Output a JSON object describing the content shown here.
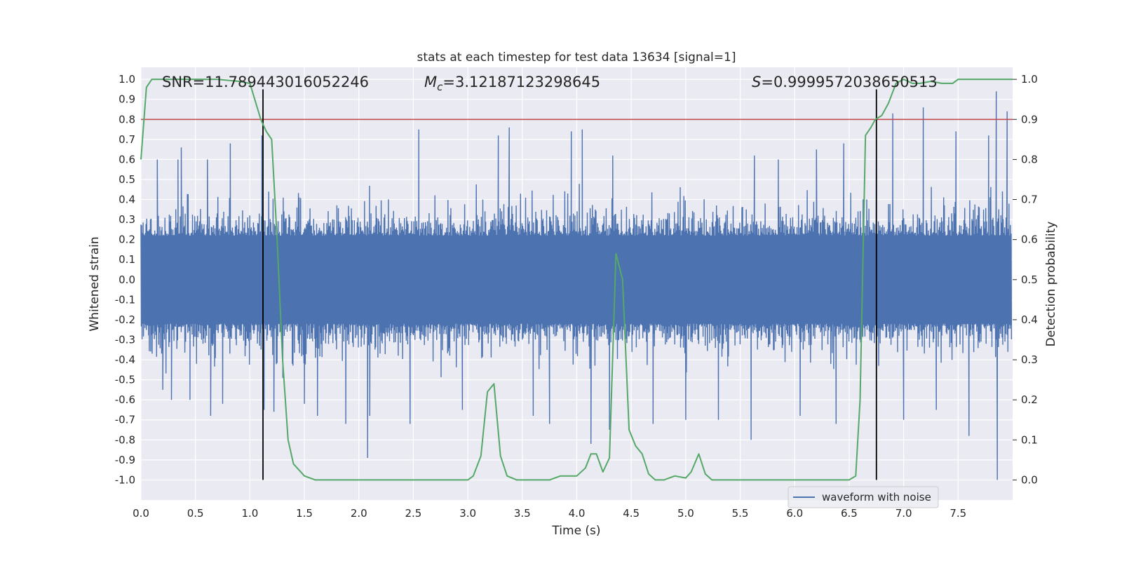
{
  "chart_data": {
    "type": "line",
    "title": "stats at each timestep for test data 13634 [signal=1]",
    "xlabel": "Time (s)",
    "ylabel": "Whitened strain",
    "y2label": "Detection probability",
    "xlim": [
      0.0,
      8.0
    ],
    "ylim": [
      -1.1,
      1.06
    ],
    "y2lim": [
      -0.05,
      1.03
    ],
    "xticks": [
      "0.0",
      "0.5",
      "1.0",
      "1.5",
      "2.0",
      "2.5",
      "3.0",
      "3.5",
      "4.0",
      "4.5",
      "5.0",
      "5.5",
      "6.0",
      "6.5",
      "7.0",
      "7.5"
    ],
    "xtick_values": [
      0.0,
      0.5,
      1.0,
      1.5,
      2.0,
      2.5,
      3.0,
      3.5,
      4.0,
      4.5,
      5.0,
      5.5,
      6.0,
      6.5,
      7.0,
      7.5
    ],
    "yticks": [
      "1.0",
      "0.9",
      "0.8",
      "0.7",
      "0.6",
      "0.5",
      "0.4",
      "0.3",
      "0.2",
      "0.1",
      "0.0",
      "-0.1",
      "-0.2",
      "-0.3",
      "-0.4",
      "-0.5",
      "-0.6",
      "-0.7",
      "-0.8",
      "-0.9",
      "-1.0"
    ],
    "ytick_values": [
      1.0,
      0.9,
      0.8,
      0.7,
      0.6,
      0.5,
      0.4,
      0.3,
      0.2,
      0.1,
      0.0,
      -0.1,
      -0.2,
      -0.3,
      -0.4,
      -0.5,
      -0.6,
      -0.7,
      -0.8,
      -0.9,
      -1.0
    ],
    "y2ticks": [
      "1.0",
      "0.9",
      "0.8",
      "0.7",
      "0.6",
      "0.5",
      "0.4",
      "0.3",
      "0.2",
      "0.1",
      "0.0"
    ],
    "y2tick_values": [
      1.0,
      0.9,
      0.8,
      0.7,
      0.6,
      0.5,
      0.4,
      0.3,
      0.2,
      0.1,
      0.0
    ],
    "grid": true,
    "legend_placement": "lower-right",
    "annotations": {
      "snr": "SNR=11.789443016052246",
      "mc_symbol": "M",
      "mc_sub": "c",
      "mc_value": "=3.12187123298645",
      "s_symbol": "S",
      "s_value": "=0.9999572038650513"
    },
    "series": [
      {
        "name": "waveform with noise",
        "kind": "noise",
        "axis": "left",
        "color": "#4c72b0",
        "t_range": [
          0.0,
          7.99
        ],
        "dense_band": [
          -0.22,
          0.22
        ],
        "typical_extent": [
          -0.5,
          0.5
        ],
        "spikes": [
          {
            "x": 0.15,
            "y": 0.6
          },
          {
            "x": 0.2,
            "y": -0.55
          },
          {
            "x": 0.28,
            "y": -0.6
          },
          {
            "x": 0.34,
            "y": 0.6
          },
          {
            "x": 0.37,
            "y": 0.66
          },
          {
            "x": 0.45,
            "y": -0.6
          },
          {
            "x": 0.61,
            "y": 0.6
          },
          {
            "x": 0.64,
            "y": -0.68
          },
          {
            "x": 0.75,
            "y": -0.62
          },
          {
            "x": 0.82,
            "y": 0.68
          },
          {
            "x": 1.11,
            "y": 0.72
          },
          {
            "x": 1.13,
            "y": -0.65
          },
          {
            "x": 1.22,
            "y": -0.66
          },
          {
            "x": 1.5,
            "y": -0.62
          },
          {
            "x": 1.62,
            "y": -0.68
          },
          {
            "x": 1.88,
            "y": -0.72
          },
          {
            "x": 2.08,
            "y": -0.89
          },
          {
            "x": 2.1,
            "y": -0.68
          },
          {
            "x": 2.55,
            "y": 0.75
          },
          {
            "x": 2.47,
            "y": -0.72
          },
          {
            "x": 2.95,
            "y": -0.65
          },
          {
            "x": 3.28,
            "y": 0.72
          },
          {
            "x": 3.38,
            "y": 0.76
          },
          {
            "x": 3.6,
            "y": -0.68
          },
          {
            "x": 3.75,
            "y": -0.72
          },
          {
            "x": 3.95,
            "y": 0.74
          },
          {
            "x": 4.05,
            "y": 0.75
          },
          {
            "x": 4.13,
            "y": -0.82
          },
          {
            "x": 4.3,
            "y": -0.75
          },
          {
            "x": 4.33,
            "y": 0.62
          },
          {
            "x": 4.7,
            "y": -0.72
          },
          {
            "x": 5.0,
            "y": -0.7
          },
          {
            "x": 5.3,
            "y": -0.7
          },
          {
            "x": 5.6,
            "y": -0.8
          },
          {
            "x": 5.63,
            "y": 0.62
          },
          {
            "x": 5.85,
            "y": 0.6
          },
          {
            "x": 6.05,
            "y": -0.68
          },
          {
            "x": 6.2,
            "y": 0.65
          },
          {
            "x": 6.38,
            "y": -0.72
          },
          {
            "x": 6.45,
            "y": 0.68
          },
          {
            "x": 6.75,
            "y": 0.73
          },
          {
            "x": 6.9,
            "y": 0.83
          },
          {
            "x": 7.0,
            "y": -0.7
          },
          {
            "x": 7.18,
            "y": 0.86
          },
          {
            "x": 7.3,
            "y": -0.65
          },
          {
            "x": 7.48,
            "y": 0.74
          },
          {
            "x": 7.6,
            "y": -0.78
          },
          {
            "x": 7.78,
            "y": 0.72
          },
          {
            "x": 7.85,
            "y": 0.94
          },
          {
            "x": 7.86,
            "y": -1.0
          },
          {
            "x": 7.95,
            "y": 0.84
          }
        ]
      },
      {
        "kind": "threshold",
        "axis": "right",
        "color": "#c44e52",
        "y": 0.9
      },
      {
        "kind": "vline",
        "axis": "left",
        "color": "#000000",
        "x": [
          1.12,
          6.75
        ],
        "ymin": -1.0,
        "ymax": 0.95
      },
      {
        "kind": "probability",
        "axis": "right",
        "color": "#55a868",
        "x": [
          0.0,
          0.05,
          0.1,
          0.2,
          0.3,
          0.5,
          0.7,
          0.9,
          1.0,
          1.1,
          1.15,
          1.2,
          1.25,
          1.3,
          1.35,
          1.4,
          1.5,
          1.6,
          1.75,
          1.9,
          2.0,
          2.2,
          2.5,
          2.8,
          3.0,
          3.05,
          3.12,
          3.18,
          3.24,
          3.3,
          3.36,
          3.45,
          3.6,
          3.75,
          3.85,
          4.0,
          4.08,
          4.13,
          4.18,
          4.24,
          4.3,
          4.36,
          4.42,
          4.48,
          4.54,
          4.6,
          4.66,
          4.72,
          4.8,
          4.9,
          5.0,
          5.05,
          5.12,
          5.18,
          5.24,
          5.3,
          5.5,
          5.8,
          5.95,
          6.1,
          6.35,
          6.5,
          6.56,
          6.6,
          6.65,
          6.7,
          6.74,
          6.8,
          6.86,
          6.93,
          7.0,
          7.08,
          7.15,
          7.25,
          7.35,
          7.45,
          7.5,
          7.6,
          8.0
        ],
        "y": [
          0.8,
          0.98,
          1.0,
          1.0,
          1.0,
          1.0,
          1.0,
          0.995,
          0.99,
          0.9,
          0.87,
          0.85,
          0.6,
          0.3,
          0.1,
          0.04,
          0.01,
          0.0,
          0.0,
          0.0,
          0.0,
          0.0,
          0.0,
          0.0,
          0.0,
          0.01,
          0.06,
          0.22,
          0.24,
          0.06,
          0.01,
          0.0,
          0.0,
          0.0,
          0.01,
          0.01,
          0.03,
          0.065,
          0.065,
          0.02,
          0.055,
          0.565,
          0.5,
          0.125,
          0.085,
          0.065,
          0.015,
          0.0,
          0.0,
          0.01,
          0.005,
          0.02,
          0.065,
          0.015,
          0.0,
          0.0,
          0.0,
          0.0,
          0.0,
          0.0,
          0.0,
          0.0,
          0.01,
          0.2,
          0.86,
          0.88,
          0.9,
          0.91,
          0.94,
          0.99,
          1.0,
          0.99,
          0.99,
          0.995,
          0.99,
          0.99,
          1.0,
          1.0,
          1.0
        ]
      }
    ]
  }
}
